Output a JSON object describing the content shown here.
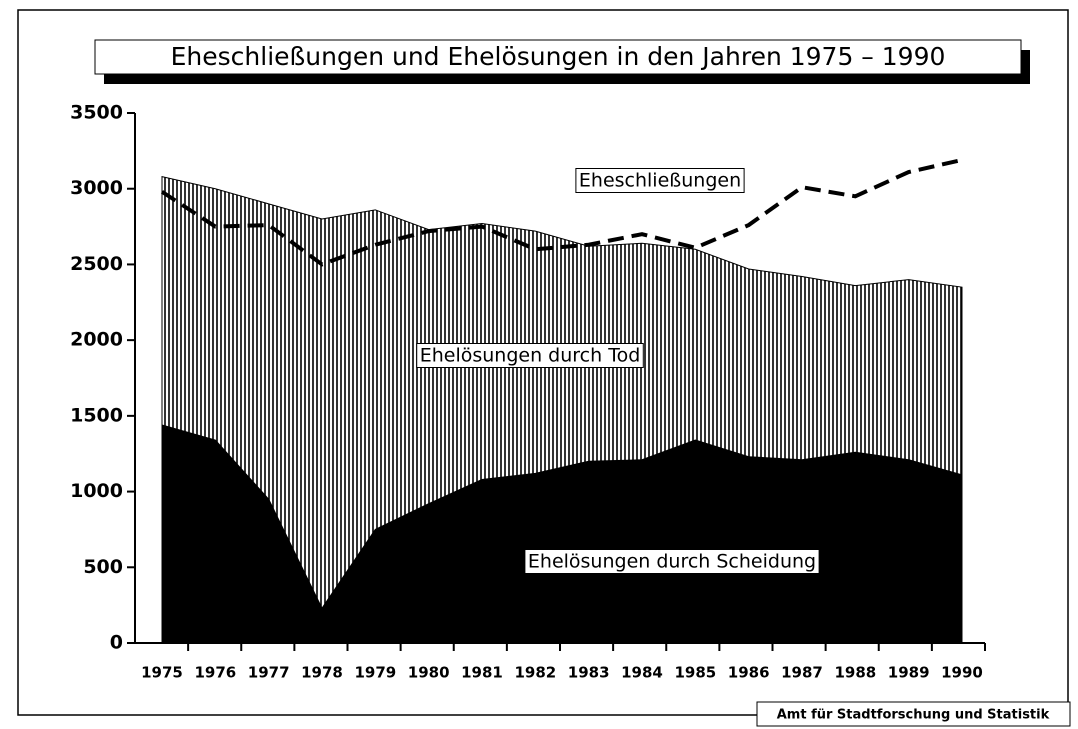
{
  "chart_data": {
    "type": "stacked-area-line",
    "title": "Eheschließungen und Ehelösungen in den Jahren 1975 – 1990",
    "source": "Amt für Stadtforschung und Statistik",
    "categories": [
      "1975",
      "1976",
      "1977",
      "1978",
      "1979",
      "1980",
      "1981",
      "1982",
      "1983",
      "1984",
      "1985",
      "1986",
      "1987",
      "1988",
      "1989",
      "1990"
    ],
    "series": [
      {
        "name": "Ehelösungen durch Scheidung",
        "color": "#000000",
        "kind": "area",
        "hatch": false,
        "values": [
          1440,
          1340,
          950,
          230,
          750,
          920,
          1080,
          1120,
          1200,
          1210,
          1340,
          1230,
          1210,
          1260,
          1210,
          1110
        ]
      },
      {
        "name": "Ehelösungen durch Tod",
        "color": "#000000",
        "kind": "area",
        "hatch": true,
        "values": [
          1640,
          1660,
          1950,
          2570,
          2110,
          1810,
          1690,
          1600,
          1420,
          1430,
          1260,
          1240,
          1210,
          1100,
          1190,
          1240
        ]
      },
      {
        "name": "Eheschließungen",
        "color": "#000000",
        "kind": "line",
        "dashed": true,
        "values": [
          2980,
          2750,
          2760,
          2500,
          2630,
          2720,
          2750,
          2600,
          2630,
          2700,
          2610,
          2760,
          3010,
          2950,
          3110,
          3190
        ]
      }
    ],
    "ylim": [
      0,
      3500
    ],
    "yticks": [
      0,
      500,
      1000,
      1500,
      2000,
      2500,
      3000,
      3500
    ]
  }
}
